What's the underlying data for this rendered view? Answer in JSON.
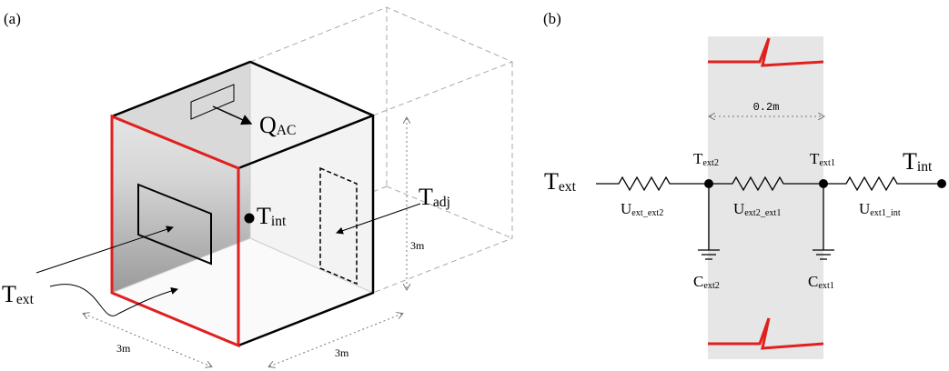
{
  "panel_a": {
    "label": "(a)",
    "q_ac": {
      "symbol": "Q",
      "sub": "AC"
    },
    "t_int": {
      "symbol": "T",
      "sub": "int"
    },
    "t_adj": {
      "symbol": "T",
      "sub": "adj"
    },
    "t_ext": {
      "symbol": "T",
      "sub": "ext"
    },
    "dimensions": [
      "3m",
      "3m",
      "3m"
    ]
  },
  "panel_b": {
    "label": "(b)",
    "width": "0.2m",
    "t_ext": {
      "symbol": "T",
      "sub": "ext"
    },
    "t_int": {
      "symbol": "T",
      "sub": "int"
    },
    "nodes": [
      {
        "symbol": "T",
        "sub": "ext2"
      },
      {
        "symbol": "T",
        "sub": "ext1"
      }
    ],
    "resistors": [
      {
        "symbol": "U",
        "sub": "ext_ext2"
      },
      {
        "symbol": "U",
        "sub": "ext2_ext1"
      },
      {
        "symbol": "U",
        "sub": "ext1_int"
      }
    ],
    "capacitors": [
      {
        "symbol": "C",
        "sub": "ext2"
      },
      {
        "symbol": "C",
        "sub": "ext1"
      }
    ]
  }
}
